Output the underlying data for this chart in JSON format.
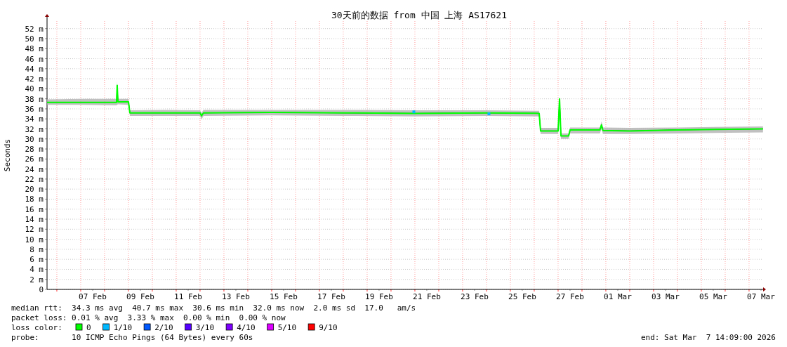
{
  "chart_data": {
    "type": "line",
    "title": "30天前的数据 from 中国 上海 AS17621",
    "ylabel": "Seconds",
    "legend_title": "loss color:",
    "legend": "bottom",
    "grid": true,
    "xlim": [
      "2026-02-05T14:09",
      "2026-03-07T14:09"
    ],
    "ylim": [
      0,
      53.5
    ],
    "yticks": [
      {
        "value": 0,
        "label": "0"
      },
      {
        "value": 2,
        "label": "2 m"
      },
      {
        "value": 4,
        "label": "4 m"
      },
      {
        "value": 6,
        "label": "6 m"
      },
      {
        "value": 8,
        "label": "8 m"
      },
      {
        "value": 10,
        "label": "10 m"
      },
      {
        "value": 12,
        "label": "12 m"
      },
      {
        "value": 14,
        "label": "14 m"
      },
      {
        "value": 16,
        "label": "16 m"
      },
      {
        "value": 18,
        "label": "18 m"
      },
      {
        "value": 20,
        "label": "20 m"
      },
      {
        "value": 22,
        "label": "22 m"
      },
      {
        "value": 24,
        "label": "24 m"
      },
      {
        "value": 26,
        "label": "26 m"
      },
      {
        "value": 28,
        "label": "28 m"
      },
      {
        "value": 30,
        "label": "30 m"
      },
      {
        "value": 32,
        "label": "32 m"
      },
      {
        "value": 34,
        "label": "34 m"
      },
      {
        "value": 36,
        "label": "36 m"
      },
      {
        "value": 38,
        "label": "38 m"
      },
      {
        "value": 40,
        "label": "40 m"
      },
      {
        "value": 42,
        "label": "42 m"
      },
      {
        "value": 44,
        "label": "44 m"
      },
      {
        "value": 46,
        "label": "46 m"
      },
      {
        "value": 48,
        "label": "48 m"
      },
      {
        "value": 50,
        "label": "50 m"
      },
      {
        "value": 52,
        "label": "52 m"
      }
    ],
    "xticks": [
      {
        "value": "2026-02-07T12:00",
        "label": "07 Feb"
      },
      {
        "value": "2026-02-09T12:00",
        "label": "09 Feb"
      },
      {
        "value": "2026-02-11T12:00",
        "label": "11 Feb"
      },
      {
        "value": "2026-02-13T12:00",
        "label": "13 Feb"
      },
      {
        "value": "2026-02-15T12:00",
        "label": "15 Feb"
      },
      {
        "value": "2026-02-17T12:00",
        "label": "17 Feb"
      },
      {
        "value": "2026-02-19T12:00",
        "label": "19 Feb"
      },
      {
        "value": "2026-02-21T12:00",
        "label": "21 Feb"
      },
      {
        "value": "2026-02-23T12:00",
        "label": "23 Feb"
      },
      {
        "value": "2026-02-25T12:00",
        "label": "25 Feb"
      },
      {
        "value": "2026-02-27T12:00",
        "label": "27 Feb"
      },
      {
        "value": "2026-03-01T12:00",
        "label": "01 Mar"
      },
      {
        "value": "2026-03-03T12:00",
        "label": "03 Mar"
      },
      {
        "value": "2026-03-05T12:00",
        "label": "05 Mar"
      },
      {
        "value": "2026-03-07T12:00",
        "label": "07 Mar"
      },
      {
        "value": "2026-02-06T00:00",
        "label": null
      },
      {
        "value": "2026-02-07T00:00",
        "label": null
      },
      {
        "value": "2026-02-08T00:00",
        "label": null
      },
      {
        "value": "2026-02-09T00:00",
        "label": null
      },
      {
        "value": "2026-02-10T00:00",
        "label": null
      },
      {
        "value": "2026-02-11T00:00",
        "label": null
      },
      {
        "value": "2026-02-12T00:00",
        "label": null
      },
      {
        "value": "2026-02-13T00:00",
        "label": null
      },
      {
        "value": "2026-02-14T00:00",
        "label": null
      },
      {
        "value": "2026-02-15T00:00",
        "label": null
      },
      {
        "value": "2026-02-16T00:00",
        "label": null
      },
      {
        "value": "2026-02-17T00:00",
        "label": null
      },
      {
        "value": "2026-02-18T00:00",
        "label": null
      },
      {
        "value": "2026-02-19T00:00",
        "label": null
      },
      {
        "value": "2026-02-20T00:00",
        "label": null
      },
      {
        "value": "2026-02-21T00:00",
        "label": null
      },
      {
        "value": "2026-02-22T00:00",
        "label": null
      },
      {
        "value": "2026-02-23T00:00",
        "label": null
      },
      {
        "value": "2026-02-24T00:00",
        "label": null
      },
      {
        "value": "2026-02-25T00:00",
        "label": null
      },
      {
        "value": "2026-02-26T00:00",
        "label": null
      },
      {
        "value": "2026-02-27T00:00",
        "label": null
      },
      {
        "value": "2026-02-28T00:00",
        "label": null
      },
      {
        "value": "2026-03-01T00:00",
        "label": null
      },
      {
        "value": "2026-03-02T00:00",
        "label": null
      },
      {
        "value": "2026-03-03T00:00",
        "label": null
      },
      {
        "value": "2026-03-04T00:00",
        "label": null
      },
      {
        "value": "2026-03-05T00:00",
        "label": null
      },
      {
        "value": "2026-03-06T00:00",
        "label": null
      },
      {
        "value": "2026-03-07T00:00",
        "label": null
      }
    ],
    "series": [
      {
        "name": "0",
        "color": "#00ff00",
        "x": [
          "2026-02-05T14:10",
          "2026-02-07T00:00",
          "2026-02-08T12:00",
          "2026-02-08T12:42",
          "2026-02-08T13:25",
          "2026-02-09T00:00",
          "2026-02-09T01:25",
          "2026-02-10T12:00",
          "2026-02-12T00:00",
          "2026-02-12T01:25",
          "2026-02-12T03:30",
          "2026-02-15T00:00",
          "2026-02-18T00:00",
          "2026-02-21T00:00",
          "2026-02-24T00:00",
          "2026-02-26T05:00",
          "2026-02-26T06:25",
          "2026-02-27T00:00",
          "2026-02-27T01:25",
          "2026-02-27T02:50",
          "2026-02-27T10:35",
          "2026-02-27T12:00",
          "2026-02-28T18:00",
          "2026-02-28T19:40",
          "2026-02-28T21:05",
          "2026-03-02T00:00",
          "2026-03-04T00:00",
          "2026-03-07T14:00"
        ],
        "values": [
          37.3,
          37.3,
          37.3,
          40.7,
          37.4,
          37.4,
          35.2,
          35.2,
          35.2,
          34.6,
          35.2,
          35.3,
          35.2,
          35.1,
          35.2,
          35.1,
          31.6,
          31.6,
          38.0,
          30.6,
          30.6,
          31.8,
          31.8,
          32.8,
          31.7,
          31.6,
          31.8,
          32.0
        ],
        "lower": [
          36.8,
          36.8,
          36.7,
          36.8,
          36.9,
          36.8,
          34.6,
          34.6,
          34.6,
          33.9,
          34.6,
          34.7,
          34.6,
          34.5,
          34.6,
          34.5,
          31.0,
          31.0,
          37.3,
          30.0,
          30.0,
          31.1,
          31.1,
          32.0,
          31.0,
          31.0,
          31.1,
          31.3
        ],
        "upper": [
          37.9,
          38.0,
          38.0,
          41.5,
          38.0,
          38.0,
          35.7,
          35.8,
          35.7,
          35.2,
          35.8,
          35.8,
          35.8,
          35.7,
          35.7,
          35.6,
          32.2,
          32.2,
          38.4,
          31.1,
          31.1,
          32.3,
          32.3,
          33.5,
          32.3,
          32.2,
          32.3,
          32.5
        ]
      },
      {
        "name": "1/10",
        "type": "scatter",
        "color": "#00b8ff",
        "x": [
          "2026-02-20T22:58",
          "2026-02-24T02:28"
        ],
        "values": [
          35.4,
          35.0
        ]
      },
      {
        "name": "2/10",
        "type": "scatter",
        "color": "#0059ff"
      },
      {
        "name": "3/10",
        "type": "scatter",
        "color": "#5500ff"
      },
      {
        "name": "4/10",
        "type": "scatter",
        "color": "#7e00ff"
      },
      {
        "name": "5/10",
        "type": "scatter",
        "color": "#dd00ff"
      },
      {
        "name": "9/10",
        "type": "scatter",
        "color": "#ff0000"
      }
    ],
    "annotations": [
      "median rtt:  34.3 ms avg  40.7 ms max  30.6 ms min  32.0 ms now  2.0 ms sd  17.0   am/s",
      "packet loss: 0.01 % avg  3.33 % max  0.00 % min  0.00 % now",
      "probe:       10 ICMP Echo Pings (64 Bytes) every 60s",
      "end: Sat Mar  7 14:09:00 2026"
    ]
  }
}
